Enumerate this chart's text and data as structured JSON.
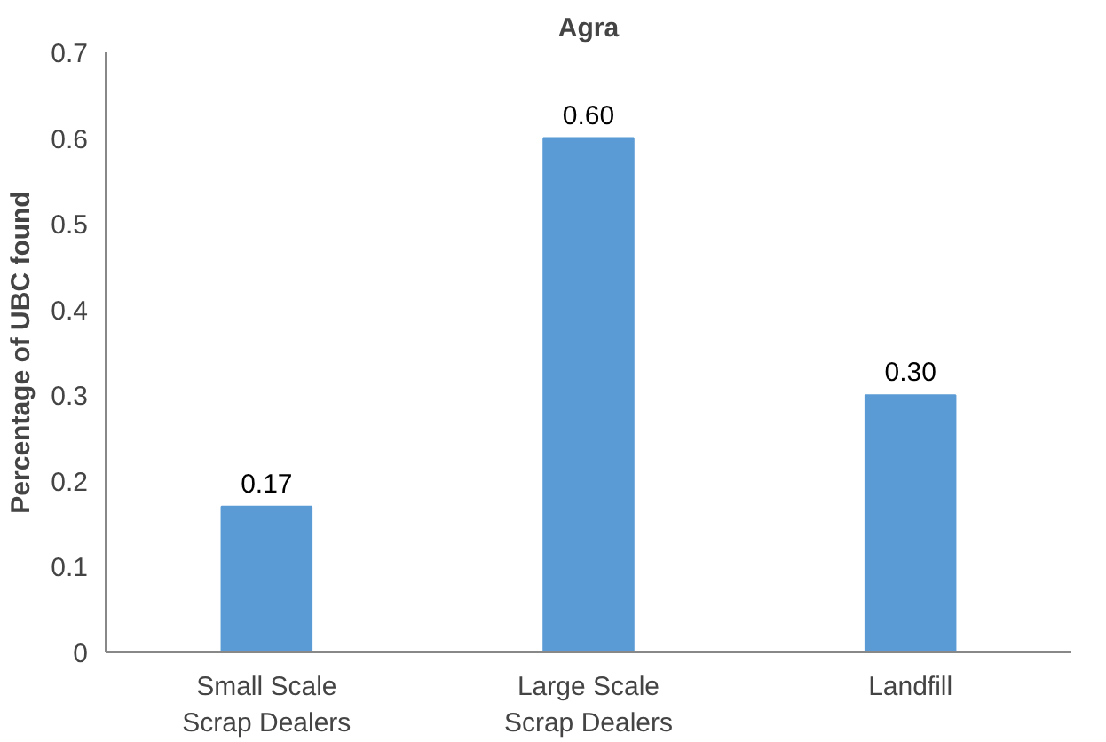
{
  "chart_data": {
    "type": "bar",
    "title": "Agra",
    "ylabel": "Percentage of UBC found",
    "categories": [
      "Small Scale Scrap Dealers",
      "Large Scale Scrap Dealers",
      "Landfill"
    ],
    "values": [
      0.17,
      0.6,
      0.3
    ],
    "value_labels": [
      "0.17",
      "0.60",
      "0.30"
    ],
    "color": "#5b9bd5",
    "ylim": [
      0,
      0.7
    ],
    "yticks": [
      {
        "value": 0,
        "label": "0"
      },
      0.1,
      0.2,
      0.3,
      0.4,
      0.5,
      0.6,
      0.7
    ]
  }
}
